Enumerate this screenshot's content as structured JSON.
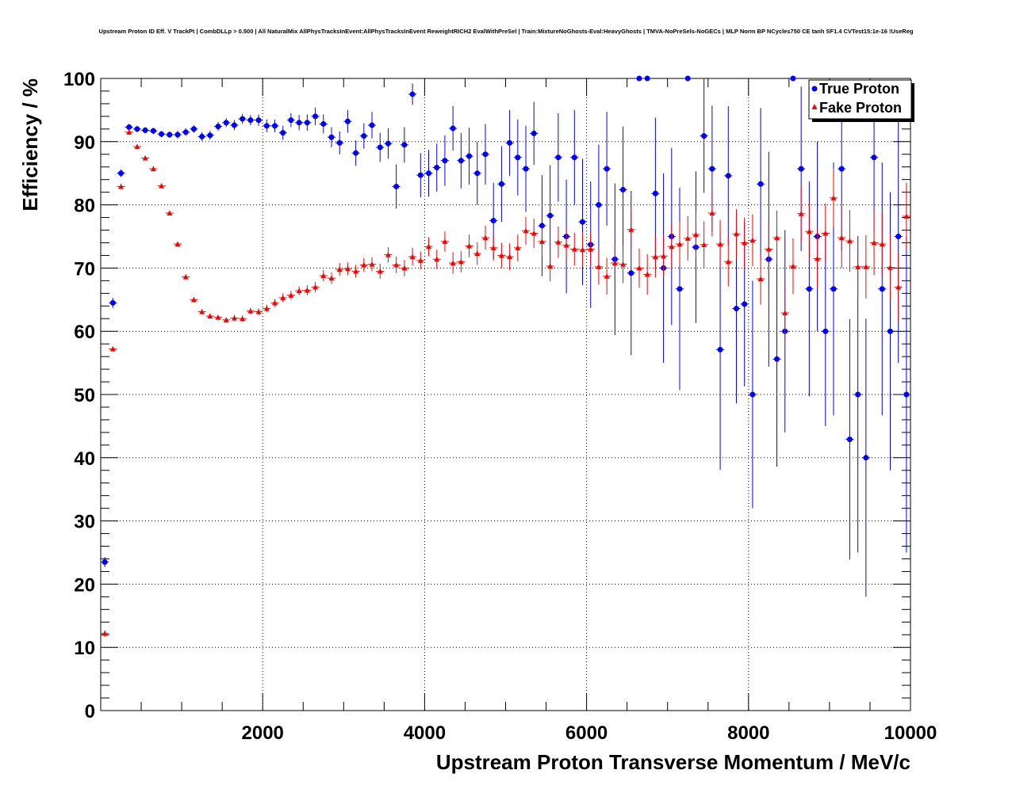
{
  "chart_data": {
    "type": "scatter",
    "title": "Upstream Proton ID Eff. V TrackPt | CombDLLp > 0.500 | All NaturalMix AllPhysTracksInEvent:AllPhysTracksInEvent ReweightRICH2 EvalWithPreSel | Train:MixtureNoGhosts-Eval:HeavyGhosts | TMVA-NoPreSels-NoGECs | MLP Norm BP NCycles750 CE tanh SF1.4 CVTest15:1e-16 !UseReg",
    "xlabel": "Upstream Proton Transverse Momentum / MeV/c",
    "ylabel": "Efficiency / %",
    "xlim": [
      0,
      10000
    ],
    "ylim": [
      0,
      100
    ],
    "grid": true,
    "legend_position": "top-right",
    "x_ticks": [
      2000,
      4000,
      6000,
      8000,
      10000
    ],
    "x_tick_labels": [
      "2000",
      "4000",
      "6000",
      "8000",
      "10000"
    ],
    "y_ticks": [
      0,
      10,
      20,
      30,
      40,
      50,
      60,
      70,
      80,
      90,
      100
    ],
    "y_tick_labels": [
      "0",
      "10",
      "20",
      "30",
      "40",
      "50",
      "60",
      "70",
      "80",
      "90",
      "100"
    ],
    "bin_width": 100,
    "series": [
      {
        "name": "True Proton",
        "color": "#0000ff",
        "marker": "circle",
        "x": [
          50,
          150,
          250,
          350,
          450,
          550,
          650,
          750,
          850,
          950,
          1050,
          1150,
          1250,
          1350,
          1450,
          1550,
          1650,
          1750,
          1850,
          1950,
          2050,
          2150,
          2250,
          2350,
          2450,
          2550,
          2650,
          2750,
          2850,
          2950,
          3050,
          3150,
          3250,
          3350,
          3450,
          3550,
          3650,
          3750,
          3850,
          3950,
          4050,
          4150,
          4250,
          4350,
          4450,
          4550,
          4650,
          4750,
          4850,
          4950,
          5050,
          5150,
          5250,
          5350,
          5450,
          5550,
          5650,
          5750,
          5850,
          5950,
          6050,
          6150,
          6250,
          6350,
          6450,
          6550,
          6650,
          6750,
          6850,
          6950,
          7050,
          7150,
          7250,
          7350,
          7450,
          7550,
          7650,
          7750,
          7850,
          7950,
          8050,
          8150,
          8250,
          8350,
          8450,
          8550,
          8650,
          8750,
          8850,
          8950,
          9050,
          9150,
          9250,
          9350,
          9450,
          9550,
          9650,
          9750,
          9850,
          9950
        ],
        "y": [
          23.5,
          64.5,
          85.0,
          92.3,
          92.0,
          91.8,
          91.7,
          91.2,
          91.1,
          91.1,
          91.5,
          92.0,
          90.8,
          91.0,
          92.4,
          93.0,
          92.6,
          93.6,
          93.4,
          93.4,
          92.5,
          92.5,
          91.4,
          93.4,
          93.0,
          93.0,
          94.0,
          92.8,
          90.7,
          89.8,
          93.2,
          88.2,
          90.9,
          92.6,
          89.1,
          89.7,
          82.9,
          89.5,
          97.5,
          84.7,
          85.0,
          85.9,
          87.0,
          92.1,
          87.0,
          87.7,
          85.0,
          88.0,
          77.5,
          83.3,
          89.8,
          87.5,
          85.7,
          91.3,
          76.7,
          78.3,
          87.5,
          75.0,
          87.5,
          77.3,
          73.7,
          80.0,
          85.7,
          71.4,
          82.4,
          69.2,
          100,
          100,
          81.8,
          70.0,
          75.0,
          66.7,
          100,
          73.3,
          90.9,
          85.7,
          57.1,
          84.6,
          63.6,
          64.3,
          50.0,
          83.3,
          71.4,
          55.6,
          60.0,
          100,
          85.7,
          66.7,
          75.0,
          60.0,
          66.7,
          85.7,
          42.9,
          50.0,
          40.0,
          87.5,
          66.7,
          60.0,
          75.0,
          50.0
        ],
        "err": [
          0.8,
          0.8,
          0.6,
          0.5,
          0.5,
          0.5,
          0.5,
          0.5,
          0.5,
          0.6,
          0.6,
          0.6,
          0.7,
          0.7,
          0.7,
          0.7,
          0.8,
          0.8,
          0.8,
          0.9,
          1.0,
          1.0,
          1.1,
          1.1,
          1.2,
          1.3,
          1.4,
          1.5,
          1.6,
          1.8,
          1.8,
          2.0,
          2.0,
          2.1,
          2.3,
          2.4,
          3.5,
          2.8,
          1.7,
          3.5,
          3.7,
          3.8,
          4.0,
          3.5,
          4.4,
          4.5,
          5.0,
          4.8,
          6.0,
          6.0,
          5.2,
          6.0,
          6.8,
          5.0,
          8.0,
          8.0,
          7.0,
          9.0,
          7.5,
          10.0,
          10.0,
          9.5,
          9.0,
          12.0,
          10.0,
          13.0,
          0,
          0,
          12.0,
          15.0,
          14.0,
          16.0,
          0,
          12.0,
          9.0,
          10.0,
          19.0,
          11.0,
          15.0,
          13.0,
          18.0,
          12.0,
          17.0,
          17.0,
          16.0,
          0,
          13.0,
          17.0,
          15.0,
          15.0,
          20.0,
          13.0,
          19.0,
          25.0,
          22.0,
          12.0,
          20.0,
          22.0,
          20.0,
          25.0
        ]
      },
      {
        "name": "Fake Proton",
        "color": "#ff0000",
        "marker": "triangle",
        "x": [
          50,
          150,
          250,
          350,
          450,
          550,
          650,
          750,
          850,
          950,
          1050,
          1150,
          1250,
          1350,
          1450,
          1550,
          1650,
          1750,
          1850,
          1950,
          2050,
          2150,
          2250,
          2350,
          2450,
          2550,
          2650,
          2750,
          2850,
          2950,
          3050,
          3150,
          3250,
          3350,
          3450,
          3550,
          3650,
          3750,
          3850,
          3950,
          4050,
          4150,
          4250,
          4350,
          4450,
          4550,
          4650,
          4750,
          4850,
          4950,
          5050,
          5150,
          5250,
          5350,
          5450,
          5550,
          5650,
          5750,
          5850,
          5950,
          6050,
          6150,
          6250,
          6350,
          6450,
          6550,
          6650,
          6750,
          6850,
          6950,
          7050,
          7150,
          7250,
          7350,
          7450,
          7550,
          7650,
          7750,
          7850,
          7950,
          8050,
          8150,
          8250,
          8350,
          8450,
          8550,
          8650,
          8750,
          8850,
          8950,
          9050,
          9150,
          9250,
          9350,
          9450,
          9550,
          9650,
          9750,
          9850,
          9950
        ],
        "y": [
          12.2,
          57.2,
          82.9,
          91.5,
          89.2,
          87.4,
          85.7,
          83.0,
          78.7,
          73.8,
          68.6,
          65.0,
          63.1,
          62.4,
          62.2,
          61.8,
          62.1,
          62.0,
          63.2,
          63.1,
          63.6,
          64.5,
          65.3,
          65.7,
          66.4,
          66.5,
          67.0,
          68.8,
          68.4,
          69.8,
          69.9,
          69.5,
          70.5,
          70.6,
          69.5,
          72.1,
          70.5,
          70.0,
          71.8,
          71.2,
          73.4,
          71.4,
          74.2,
          70.8,
          71.0,
          73.5,
          72.3,
          74.8,
          73.2,
          72.0,
          71.8,
          73.2,
          75.9,
          75.5,
          74.2,
          70.3,
          74.1,
          73.6,
          73.0,
          72.9,
          73.0,
          70.2,
          68.7,
          70.8,
          70.6,
          76.1,
          70.0,
          69.0,
          71.8,
          71.9,
          73.4,
          73.8,
          74.7,
          75.3,
          73.7,
          78.7,
          73.8,
          71.0,
          75.4,
          74.0,
          74.4,
          68.3,
          73.0,
          74.8,
          62.9,
          70.3,
          78.6,
          75.8,
          71.5,
          75.5,
          81.1,
          74.8,
          74.3,
          70.2,
          70.2,
          74.0,
          73.8,
          70.1,
          67.0,
          78.2
        ],
        "err": [
          0.5,
          0.4,
          0.4,
          0.4,
          0.4,
          0.4,
          0.4,
          0.4,
          0.4,
          0.4,
          0.4,
          0.4,
          0.4,
          0.4,
          0.4,
          0.4,
          0.5,
          0.5,
          0.5,
          0.5,
          0.6,
          0.6,
          0.7,
          0.7,
          0.7,
          0.8,
          0.8,
          0.9,
          0.9,
          1.0,
          1.0,
          1.0,
          1.1,
          1.1,
          1.2,
          1.2,
          1.3,
          1.3,
          1.4,
          1.4,
          1.5,
          1.5,
          1.6,
          1.7,
          1.7,
          1.8,
          1.8,
          1.9,
          2.0,
          2.0,
          2.1,
          2.1,
          2.2,
          2.3,
          2.3,
          2.4,
          2.5,
          2.5,
          2.6,
          2.7,
          2.7,
          2.8,
          2.9,
          2.9,
          3.0,
          3.1,
          3.1,
          3.2,
          3.3,
          3.3,
          3.4,
          3.5,
          3.5,
          3.6,
          3.7,
          3.7,
          3.8,
          3.9,
          3.9,
          4.0,
          4.1,
          4.1,
          4.2,
          4.3,
          4.3,
          4.4,
          4.5,
          4.5,
          4.6,
          4.7,
          4.7,
          4.8,
          4.9,
          4.9,
          5.0,
          5.1,
          5.1,
          5.2,
          5.3,
          5.3
        ]
      }
    ]
  }
}
